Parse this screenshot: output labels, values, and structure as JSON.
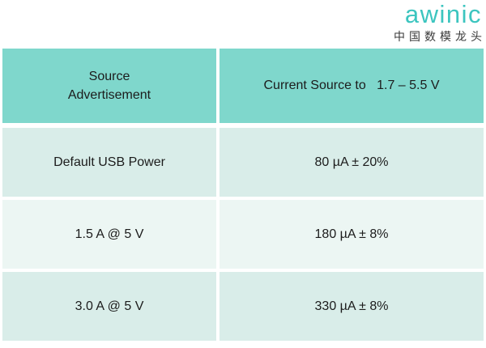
{
  "logo": {
    "brand": "awinic",
    "tagline": "中国数模龙头",
    "brand_color": "#3cc5bf",
    "tagline_color": "#3a3a3a"
  },
  "table": {
    "colors": {
      "header_bg": "#7fd7cc",
      "row_bg": "#d9ede9",
      "row_alt_bg": "#ecf6f3",
      "text": "#1c1c1c"
    },
    "header": {
      "source_label": "Source\nAdvertisement",
      "current_label": "Current Source to   1.7 – 5.5 V"
    },
    "rows": [
      {
        "source": "Default USB Power",
        "current": "80 µA ± 20%"
      },
      {
        "source": "1.5 A @ 5 V",
        "current": "180 µA ± 8%"
      },
      {
        "source": "3.0 A @ 5 V",
        "current": "330 µA ± 8%"
      }
    ]
  }
}
